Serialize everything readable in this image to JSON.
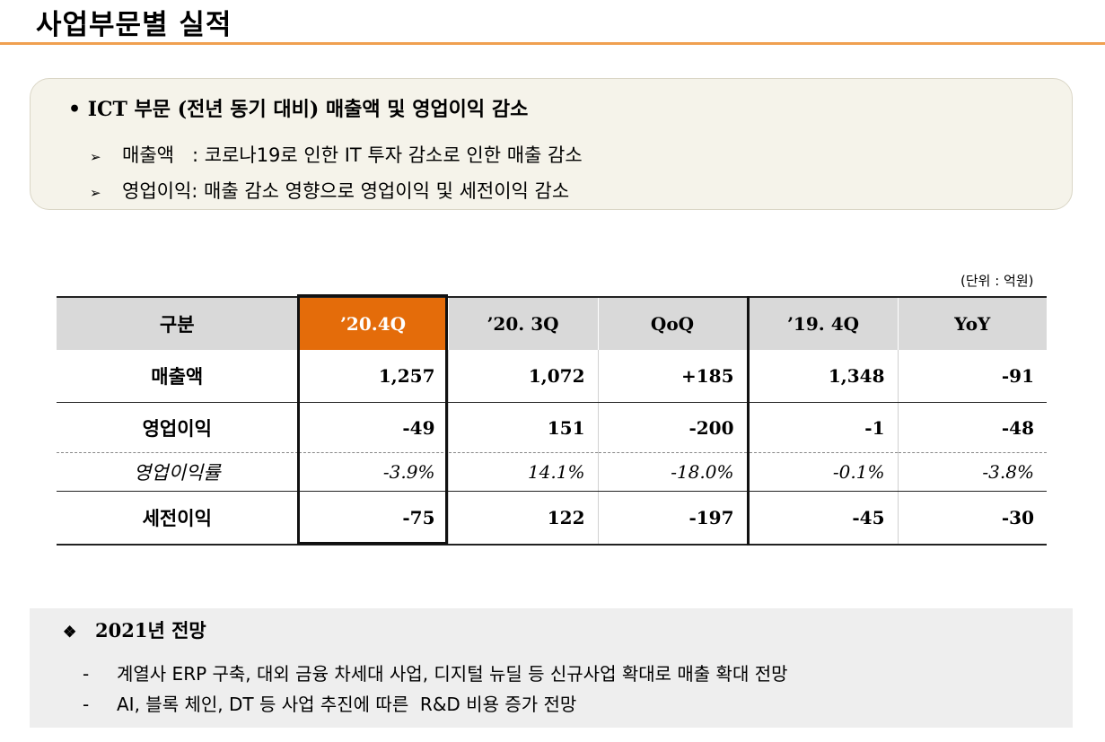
{
  "header": {
    "title": "사업부문별 실적"
  },
  "summary": {
    "heading": "• ICT 부문 (전년 동기 대비)  매출액 및 영업이익 감소",
    "bullet_glyph": "➢",
    "items": [
      {
        "text": "매출액   : 코로나19로 인한 IT 투자 감소로 인한 매출 감소"
      },
      {
        "text": "영업이익: 매출 감소 영향으로 영업이익 및 세전이익 감소"
      }
    ]
  },
  "table": {
    "unit": "(단위 : 억원)",
    "headers": [
      "구분",
      "’20.4Q",
      "’20. 3Q",
      "QoQ",
      "’19. 4Q",
      "YoY"
    ],
    "rows": [
      {
        "label": "매출액",
        "values": [
          "1,257",
          "1,072",
          "+185",
          "1,348",
          "-91"
        ]
      },
      {
        "label": "영업이익",
        "values": [
          "-49",
          "151",
          "-200",
          "-1",
          "-48"
        ]
      },
      {
        "label": "영업이익률",
        "values": [
          "-3.9%",
          "14.1%",
          "-18.0%",
          "-0.1%",
          "-3.8%"
        ]
      },
      {
        "label": "세전이익",
        "values": [
          "-75",
          "122",
          "-197",
          "-45",
          "-30"
        ]
      }
    ],
    "highlight_color": "#e46c0a"
  },
  "outlook": {
    "glyph": "❖",
    "heading": "2021년 전망",
    "dash": "-",
    "items": [
      "계열사 ERP 구축, 대외 금융 차세대 사업, 디지털 뉴딜 등 신규사업 확대로 매출 확대 전망",
      "AI, 블록 체인, DT 등 사업 추진에 따른  R&D 비용 증가 전망"
    ]
  }
}
